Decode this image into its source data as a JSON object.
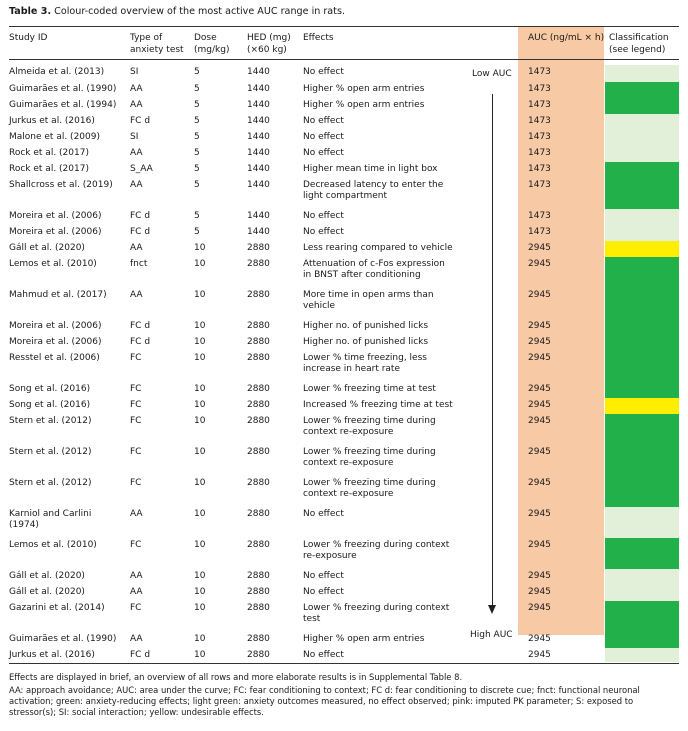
{
  "caption": {
    "label": "Table 3.",
    "text": "Colour-coded overview of the most active AUC range in rats."
  },
  "colors": {
    "green": "#22b04b",
    "light_green": "#e2f0d9",
    "yellow": "#ffee00",
    "pink": "#f8c9a5"
  },
  "headers": {
    "study": [
      "Study ID"
    ],
    "test": [
      "Type of",
      "anxiety test"
    ],
    "dose": [
      "Dose",
      "(mg/kg)"
    ],
    "hed": [
      "HED (mg)",
      "(×60 kg)"
    ],
    "effects": [
      "Effects"
    ],
    "auc": [
      "AUC (ng/mL × h)"
    ],
    "classification": [
      "Classification",
      "(see legend)"
    ]
  },
  "markers": {
    "low": "Low AUC",
    "high": "High AUC"
  },
  "rows": [
    {
      "study": [
        "Almeida et al. (2013)"
      ],
      "test": "SI",
      "dose": "5",
      "hed": "1440",
      "effects": [
        "No effect"
      ],
      "auc": "1473",
      "class": "light_green"
    },
    {
      "study": [
        "Guimarães et al. (1990)"
      ],
      "test": "AA",
      "dose": "5",
      "hed": "1440",
      "effects": [
        "Higher % open arm entries"
      ],
      "auc": "1473",
      "class": "green"
    },
    {
      "study": [
        "Guimarães et al. (1994)"
      ],
      "test": "AA",
      "dose": "5",
      "hed": "1440",
      "effects": [
        "Higher % open arm entries"
      ],
      "auc": "1473",
      "class": "green"
    },
    {
      "study": [
        "Jurkus et al. (2016)"
      ],
      "test": "FC d",
      "dose": "5",
      "hed": "1440",
      "effects": [
        "No effect"
      ],
      "auc": "1473",
      "class": "light_green"
    },
    {
      "study": [
        "Malone et al. (2009)"
      ],
      "test": "SI",
      "dose": "5",
      "hed": "1440",
      "effects": [
        "No effect"
      ],
      "auc": "1473",
      "class": "light_green"
    },
    {
      "study": [
        "Rock et al. (2017)"
      ],
      "test": "AA",
      "dose": "5",
      "hed": "1440",
      "effects": [
        "No effect"
      ],
      "auc": "1473",
      "class": "light_green"
    },
    {
      "study": [
        "Rock et al. (2017)"
      ],
      "test": "S_AA",
      "dose": "5",
      "hed": "1440",
      "effects": [
        "Higher mean time in light box"
      ],
      "auc": "1473",
      "class": "green"
    },
    {
      "study": [
        "Shallcross et al. (2019)"
      ],
      "test": "AA",
      "dose": "5",
      "hed": "1440",
      "effects": [
        "Decreased latency to enter the",
        "light compartment"
      ],
      "auc": "1473",
      "class": "green"
    },
    {
      "study": [
        "Moreira et al. (2006)"
      ],
      "test": "FC d",
      "dose": "5",
      "hed": "1440",
      "effects": [
        "No effect"
      ],
      "auc": "1473",
      "class": "light_green"
    },
    {
      "study": [
        "Moreira et al. (2006)"
      ],
      "test": "FC d",
      "dose": "5",
      "hed": "1440",
      "effects": [
        "No effect"
      ],
      "auc": "1473",
      "class": "light_green"
    },
    {
      "study": [
        "Gáll et al. (2020)"
      ],
      "test": "AA",
      "dose": "10",
      "hed": "2880",
      "effects": [
        "Less rearing compared to vehicle"
      ],
      "auc": "2945",
      "class": "yellow"
    },
    {
      "study": [
        "Lemos et al. (2010)"
      ],
      "test": "fnct",
      "dose": "10",
      "hed": "2880",
      "effects": [
        "Attenuation of c-Fos expression",
        "in BNST after conditioning"
      ],
      "auc": "2945",
      "class": "green"
    },
    {
      "study": [
        "Mahmud et al. (2017)"
      ],
      "test": "AA",
      "dose": "10",
      "hed": "2880",
      "effects": [
        "More time in open arms than",
        "vehicle"
      ],
      "auc": "2945",
      "class": "green"
    },
    {
      "study": [
        "Moreira et al. (2006)"
      ],
      "test": "FC d",
      "dose": "10",
      "hed": "2880",
      "effects": [
        "Higher no. of punished licks"
      ],
      "auc": "2945",
      "class": "green"
    },
    {
      "study": [
        "Moreira et al. (2006)"
      ],
      "test": "FC d",
      "dose": "10",
      "hed": "2880",
      "effects": [
        "Higher no. of punished licks"
      ],
      "auc": "2945",
      "class": "green"
    },
    {
      "study": [
        "Resstel et al. (2006)"
      ],
      "test": "FC",
      "dose": "10",
      "hed": "2880",
      "effects": [
        "Lower % time freezing, less",
        "increase in heart rate"
      ],
      "auc": "2945",
      "class": "green"
    },
    {
      "study": [
        "Song et al. (2016)"
      ],
      "test": "FC",
      "dose": "10",
      "hed": "2880",
      "effects": [
        "Lower % freezing time at test"
      ],
      "auc": "2945",
      "class": "green"
    },
    {
      "study": [
        "Song et al. (2016)"
      ],
      "test": "FC",
      "dose": "10",
      "hed": "2880",
      "effects": [
        "Increased % freezing time at test"
      ],
      "auc": "2945",
      "class": "yellow"
    },
    {
      "study": [
        "Stern et al. (2012)"
      ],
      "test": "FC",
      "dose": "10",
      "hed": "2880",
      "effects": [
        "Lower % freezing time during",
        "context re-exposure"
      ],
      "auc": "2945",
      "class": "green"
    },
    {
      "study": [
        "Stern et al. (2012)"
      ],
      "test": "FC",
      "dose": "10",
      "hed": "2880",
      "effects": [
        "Lower % freezing time during",
        "context re-exposure"
      ],
      "auc": "2945",
      "class": "green"
    },
    {
      "study": [
        "Stern et al. (2012)"
      ],
      "test": "FC",
      "dose": "10",
      "hed": "2880",
      "effects": [
        "Lower % freezing time during",
        "context re-exposure"
      ],
      "auc": "2945",
      "class": "green"
    },
    {
      "study": [
        "Karniol and Carlini",
        "(1974)"
      ],
      "test": "AA",
      "dose": "10",
      "hed": "2880",
      "effects": [
        "No effect"
      ],
      "auc": "2945",
      "class": "light_green"
    },
    {
      "study": [
        "Lemos et al. (2010)"
      ],
      "test": "FC",
      "dose": "10",
      "hed": "2880",
      "effects": [
        "Lower % freezing during context",
        "re-exposure"
      ],
      "auc": "2945",
      "class": "green"
    },
    {
      "study": [
        "Gáll et al. (2020)"
      ],
      "test": "AA",
      "dose": "10",
      "hed": "2880",
      "effects": [
        "No effect"
      ],
      "auc": "2945",
      "class": "light_green"
    },
    {
      "study": [
        "Gáll et al. (2020)"
      ],
      "test": "AA",
      "dose": "10",
      "hed": "2880",
      "effects": [
        "No effect"
      ],
      "auc": "2945",
      "class": "light_green"
    },
    {
      "study": [
        "Gazarini et al. (2014)"
      ],
      "test": "FC",
      "dose": "10",
      "hed": "2880",
      "effects": [
        "Lower % freezing during context",
        "test"
      ],
      "auc": "2945",
      "class": "green"
    },
    {
      "study": [
        "Guimarães et al. (1990)"
      ],
      "test": "AA",
      "dose": "10",
      "hed": "2880",
      "effects": [
        "Higher % open arm entries"
      ],
      "auc": "2945",
      "class": "green"
    },
    {
      "study": [
        "Jurkus et al. (2016)"
      ],
      "test": "FC d",
      "dose": "10",
      "hed": "2880",
      "effects": [
        "No effect"
      ],
      "auc": "2945",
      "class": "light_green"
    }
  ],
  "footnotes": [
    "Effects are displayed in brief, an overview of all rows and more elaborate results is in Supplemental Table 8.",
    "AA: approach avoidance; AUC: area under the curve; FC: fear conditioning to context; FC d: fear conditioning to discrete cue; fnct: functional neuronal activation; green: anxiety-reducing effects; light green: anxiety outcomes measured, no effect observed; pink: imputed PK parameter; S: exposed to stressor(s); SI: social interaction; yellow: undesirable effects."
  ]
}
